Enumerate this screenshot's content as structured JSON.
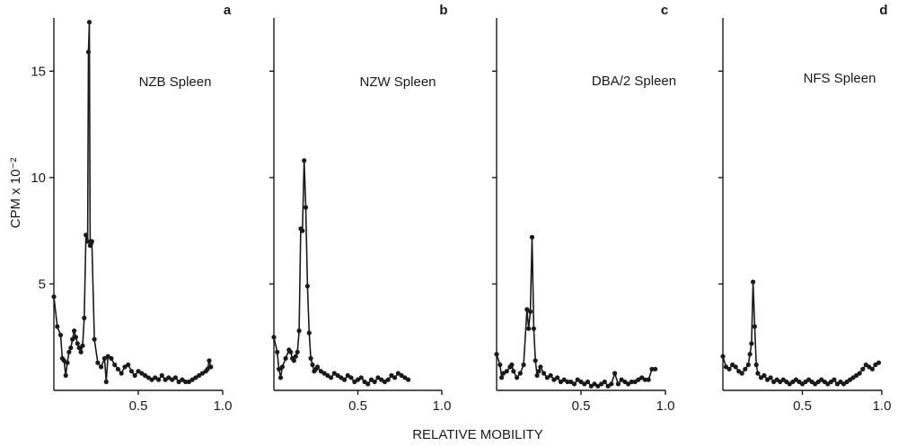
{
  "chart_data": {
    "type": "line",
    "xlabel": "RELATIVE MOBILITY",
    "ylabel": "CPM x 10⁻²",
    "ylim": [
      0,
      17.5
    ],
    "yticks": [
      {
        "value": 5,
        "label": "5"
      },
      {
        "value": 10,
        "label": "10"
      },
      {
        "value": 15,
        "label": "15"
      }
    ],
    "grid": false,
    "panels": [
      {
        "letter": "a",
        "title": "NZB Spleen",
        "xlim": [
          0,
          1.0
        ],
        "xticks": [
          {
            "value": 0.5,
            "label": "0.5"
          },
          {
            "value": 1.0,
            "label": "1.0"
          }
        ],
        "x": [
          0.0,
          0.02,
          0.04,
          0.05,
          0.06,
          0.07,
          0.08,
          0.09,
          0.1,
          0.11,
          0.12,
          0.13,
          0.14,
          0.15,
          0.16,
          0.17,
          0.18,
          0.19,
          0.2,
          0.205,
          0.21,
          0.215,
          0.22,
          0.225,
          0.24,
          0.26,
          0.28,
          0.3,
          0.31,
          0.32,
          0.34,
          0.36,
          0.38,
          0.4,
          0.42,
          0.44,
          0.46,
          0.48,
          0.5,
          0.52,
          0.54,
          0.56,
          0.58,
          0.6,
          0.62,
          0.64,
          0.66,
          0.68,
          0.7,
          0.72,
          0.74,
          0.76,
          0.78,
          0.8,
          0.82,
          0.84,
          0.86,
          0.88,
          0.9,
          0.91,
          0.92,
          0.93
        ],
        "y": [
          4.4,
          3.0,
          2.6,
          1.5,
          1.4,
          0.7,
          1.3,
          1.8,
          2.0,
          2.4,
          2.8,
          2.5,
          2.2,
          2.0,
          1.8,
          2.1,
          3.4,
          7.3,
          7.0,
          15.9,
          17.3,
          6.8,
          6.9,
          7.0,
          2.4,
          1.3,
          1.1,
          1.5,
          0.4,
          1.6,
          1.5,
          1.2,
          1.0,
          0.8,
          1.1,
          1.2,
          0.9,
          0.7,
          0.9,
          0.8,
          0.7,
          0.6,
          0.5,
          0.6,
          0.5,
          0.7,
          0.5,
          0.6,
          0.5,
          0.6,
          0.4,
          0.5,
          0.4,
          0.4,
          0.5,
          0.6,
          0.7,
          0.8,
          0.9,
          1.0,
          1.4,
          1.1
        ]
      },
      {
        "letter": "b",
        "title": "NZW Spleen",
        "xlim": [
          0,
          1.0
        ],
        "xticks": [
          {
            "value": 0.5,
            "label": "0.5"
          },
          {
            "value": 1.0,
            "label": "1.0"
          }
        ],
        "x": [
          0.0,
          0.02,
          0.03,
          0.04,
          0.05,
          0.07,
          0.09,
          0.1,
          0.11,
          0.12,
          0.13,
          0.14,
          0.15,
          0.16,
          0.17,
          0.18,
          0.19,
          0.2,
          0.21,
          0.22,
          0.23,
          0.24,
          0.25,
          0.26,
          0.28,
          0.3,
          0.32,
          0.34,
          0.36,
          0.38,
          0.4,
          0.42,
          0.44,
          0.46,
          0.48,
          0.5,
          0.52,
          0.54,
          0.56,
          0.58,
          0.6,
          0.62,
          0.64,
          0.66,
          0.68,
          0.7,
          0.72,
          0.74,
          0.76,
          0.78,
          0.8
        ],
        "y": [
          2.5,
          1.8,
          1.0,
          0.6,
          1.1,
          1.5,
          1.9,
          1.8,
          1.5,
          1.4,
          1.6,
          1.8,
          2.8,
          7.6,
          7.5,
          10.8,
          8.6,
          4.9,
          2.7,
          1.5,
          1.2,
          0.9,
          1.0,
          1.1,
          0.9,
          0.8,
          0.7,
          0.6,
          0.8,
          0.7,
          0.6,
          0.5,
          0.7,
          0.6,
          0.4,
          0.5,
          0.6,
          0.4,
          0.3,
          0.5,
          0.4,
          0.6,
          0.5,
          0.4,
          0.5,
          0.7,
          0.6,
          0.8,
          0.7,
          0.6,
          0.5
        ]
      },
      {
        "letter": "c",
        "title": "DBA/2 Spleen",
        "xlim": [
          0,
          1.0
        ],
        "xticks": [
          {
            "value": 0.5,
            "label": "0.5"
          },
          {
            "value": 1.0,
            "label": "1.0"
          }
        ],
        "x": [
          0.0,
          0.02,
          0.03,
          0.04,
          0.06,
          0.08,
          0.09,
          0.1,
          0.12,
          0.14,
          0.16,
          0.18,
          0.19,
          0.2,
          0.21,
          0.22,
          0.23,
          0.24,
          0.25,
          0.26,
          0.28,
          0.3,
          0.32,
          0.34,
          0.36,
          0.38,
          0.4,
          0.42,
          0.44,
          0.46,
          0.48,
          0.5,
          0.52,
          0.54,
          0.56,
          0.58,
          0.6,
          0.62,
          0.64,
          0.66,
          0.68,
          0.7,
          0.72,
          0.74,
          0.76,
          0.78,
          0.8,
          0.82,
          0.84,
          0.86,
          0.88,
          0.9,
          0.92,
          0.94
        ],
        "y": [
          1.7,
          1.2,
          0.6,
          0.8,
          0.9,
          1.1,
          1.2,
          0.9,
          0.6,
          0.8,
          1.2,
          3.8,
          2.9,
          3.7,
          7.2,
          2.9,
          1.4,
          0.7,
          0.9,
          1.1,
          0.8,
          0.6,
          0.7,
          0.5,
          0.6,
          0.4,
          0.5,
          0.4,
          0.4,
          0.3,
          0.5,
          0.4,
          0.3,
          0.4,
          0.2,
          0.3,
          0.2,
          0.3,
          0.4,
          0.2,
          0.3,
          0.8,
          0.3,
          0.5,
          0.4,
          0.3,
          0.4,
          0.4,
          0.5,
          0.6,
          0.5,
          0.5,
          1.0,
          1.0
        ]
      },
      {
        "letter": "d",
        "title": "NFS Spleen",
        "xlim": [
          0,
          1.0
        ],
        "xticks": [
          {
            "value": 0.5,
            "label": "0.5"
          },
          {
            "value": 1.0,
            "label": "1.0"
          }
        ],
        "x": [
          0.0,
          0.02,
          0.04,
          0.06,
          0.08,
          0.1,
          0.12,
          0.14,
          0.16,
          0.17,
          0.18,
          0.19,
          0.2,
          0.21,
          0.22,
          0.24,
          0.26,
          0.28,
          0.3,
          0.32,
          0.34,
          0.36,
          0.38,
          0.4,
          0.42,
          0.44,
          0.46,
          0.48,
          0.5,
          0.52,
          0.54,
          0.56,
          0.58,
          0.6,
          0.62,
          0.64,
          0.66,
          0.68,
          0.7,
          0.72,
          0.74,
          0.76,
          0.78,
          0.8,
          0.82,
          0.84,
          0.86,
          0.88,
          0.9,
          0.92,
          0.94,
          0.96,
          0.98
        ],
        "y": [
          1.6,
          1.1,
          1.0,
          1.2,
          1.1,
          0.9,
          0.8,
          1.0,
          1.2,
          1.7,
          2.2,
          5.1,
          3.0,
          1.2,
          0.8,
          0.6,
          0.7,
          0.5,
          0.6,
          0.4,
          0.5,
          0.4,
          0.5,
          0.4,
          0.3,
          0.4,
          0.5,
          0.4,
          0.3,
          0.4,
          0.5,
          0.4,
          0.3,
          0.4,
          0.5,
          0.4,
          0.3,
          0.4,
          0.5,
          0.3,
          0.4,
          0.3,
          0.4,
          0.5,
          0.6,
          0.7,
          0.8,
          1.0,
          1.2,
          1.1,
          1.0,
          1.2,
          1.3
        ]
      }
    ]
  }
}
